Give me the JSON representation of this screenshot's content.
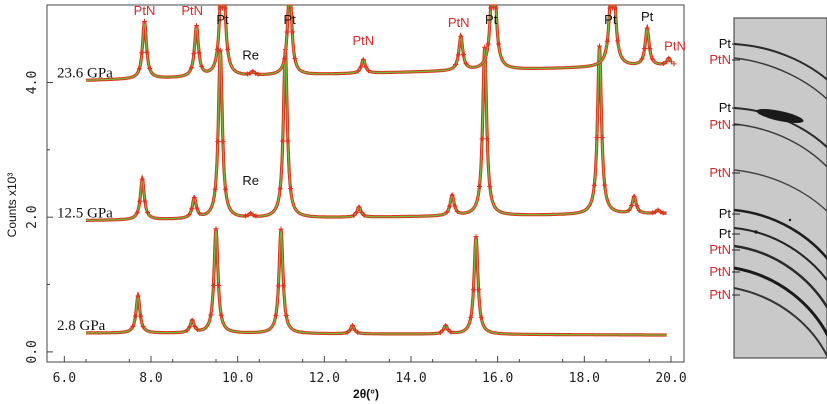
{
  "chart_data": {
    "type": "line",
    "title": "",
    "xlabel": "2θ(°)",
    "ylabel": "Counts x10³",
    "xlim": [
      5.6,
      20.3
    ],
    "ylim": [
      -0.15,
      5.15
    ],
    "x_ticks": [
      "6.0",
      "8.0",
      "10.0",
      "12.0",
      "14.0",
      "16.0",
      "18.0",
      "20.0"
    ],
    "y_ticks": [
      "0.0",
      "2.0",
      "4.0"
    ],
    "y_tick_values": [
      0.0,
      2.0,
      4.0
    ],
    "colors": {
      "observed": "#e0321e",
      "fit": "#6abf3a",
      "label_phase": "#d42a2a",
      "label_pt": "#111111"
    },
    "series": [
      {
        "label": "2.8 GPa",
        "x_start": 6.5,
        "x_end": 19.9,
        "baseline": 0.28,
        "baseline_end": 0.25,
        "peaks": [
          [
            7.7,
            0.55
          ],
          [
            8.95,
            0.18
          ],
          [
            9.5,
            1.55
          ],
          [
            11.0,
            1.55
          ],
          [
            12.65,
            0.12
          ],
          [
            14.8,
            0.12
          ],
          [
            15.5,
            1.45
          ]
        ]
      },
      {
        "label": "12.5 GPa",
        "x_start": 6.5,
        "x_end": 19.9,
        "baseline": 1.95,
        "baseline_end": 2.05,
        "peaks": [
          [
            7.8,
            0.6
          ],
          [
            9.0,
            0.3
          ],
          [
            9.6,
            2.5
          ],
          [
            10.3,
            0.05
          ],
          [
            11.1,
            2.5
          ],
          [
            12.8,
            0.15
          ],
          [
            14.95,
            0.3
          ],
          [
            15.7,
            2.5
          ],
          [
            18.35,
            2.5
          ],
          [
            19.15,
            0.25
          ],
          [
            19.7,
            0.05
          ]
        ]
      },
      {
        "label": "23.6 GPa",
        "x_start": 6.5,
        "x_end": 20.0,
        "baseline": 4.03,
        "baseline_end": 4.25,
        "peaks": [
          [
            7.85,
            0.85
          ],
          [
            9.05,
            0.75
          ],
          [
            9.65,
            2.3
          ],
          [
            10.35,
            0.05
          ],
          [
            11.2,
            1.4
          ],
          [
            12.9,
            0.2
          ],
          [
            15.15,
            0.5
          ],
          [
            15.9,
            2.2
          ],
          [
            18.65,
            2.2
          ],
          [
            19.45,
            0.55
          ],
          [
            19.95,
            0.1
          ]
        ]
      }
    ],
    "annotations": [
      {
        "text": "PtN",
        "x": 7.85,
        "y": 5.05,
        "kind": "phase"
      },
      {
        "text": "PtN",
        "x": 8.95,
        "y": 5.05,
        "kind": "phase"
      },
      {
        "text": "Pt",
        "x": 9.65,
        "y": 6.3,
        "kind": "pt"
      },
      {
        "text": "Re",
        "x": 10.3,
        "y": 4.3,
        "kind": "pt"
      },
      {
        "text": "Pt",
        "x": 11.2,
        "y": 5.6,
        "kind": "pt"
      },
      {
        "text": "PtN",
        "x": 12.9,
        "y": 4.55,
        "kind": "phase"
      },
      {
        "text": "PtN",
        "x": 15.1,
        "y": 4.85,
        "kind": "phase"
      },
      {
        "text": "Pt",
        "x": 15.85,
        "y": 6.35,
        "kind": "pt"
      },
      {
        "text": "Pt",
        "x": 18.6,
        "y": 6.3,
        "kind": "pt"
      },
      {
        "text": "Pt",
        "x": 19.45,
        "y": 4.95,
        "kind": "pt"
      },
      {
        "text": "PtN",
        "x": 20.1,
        "y": 4.45,
        "kind": "phase"
      },
      {
        "text": "Re",
        "x": 10.3,
        "y": 2.2,
        "kind": "pt"
      }
    ]
  },
  "diffraction_image": {
    "ring_labels": [
      {
        "text": "Pt",
        "kind": "pt"
      },
      {
        "text": "PtN",
        "kind": "phase"
      },
      {
        "text": "Pt",
        "kind": "pt"
      },
      {
        "text": "PtN",
        "kind": "phase"
      },
      {
        "text": "PtN",
        "kind": "phase"
      },
      {
        "text": "Pt",
        "kind": "pt"
      },
      {
        "text": "Pt",
        "kind": "pt"
      },
      {
        "text": "PtN",
        "kind": "phase"
      },
      {
        "text": "PtN",
        "kind": "phase"
      },
      {
        "text": "PtN",
        "kind": "phase"
      }
    ]
  }
}
